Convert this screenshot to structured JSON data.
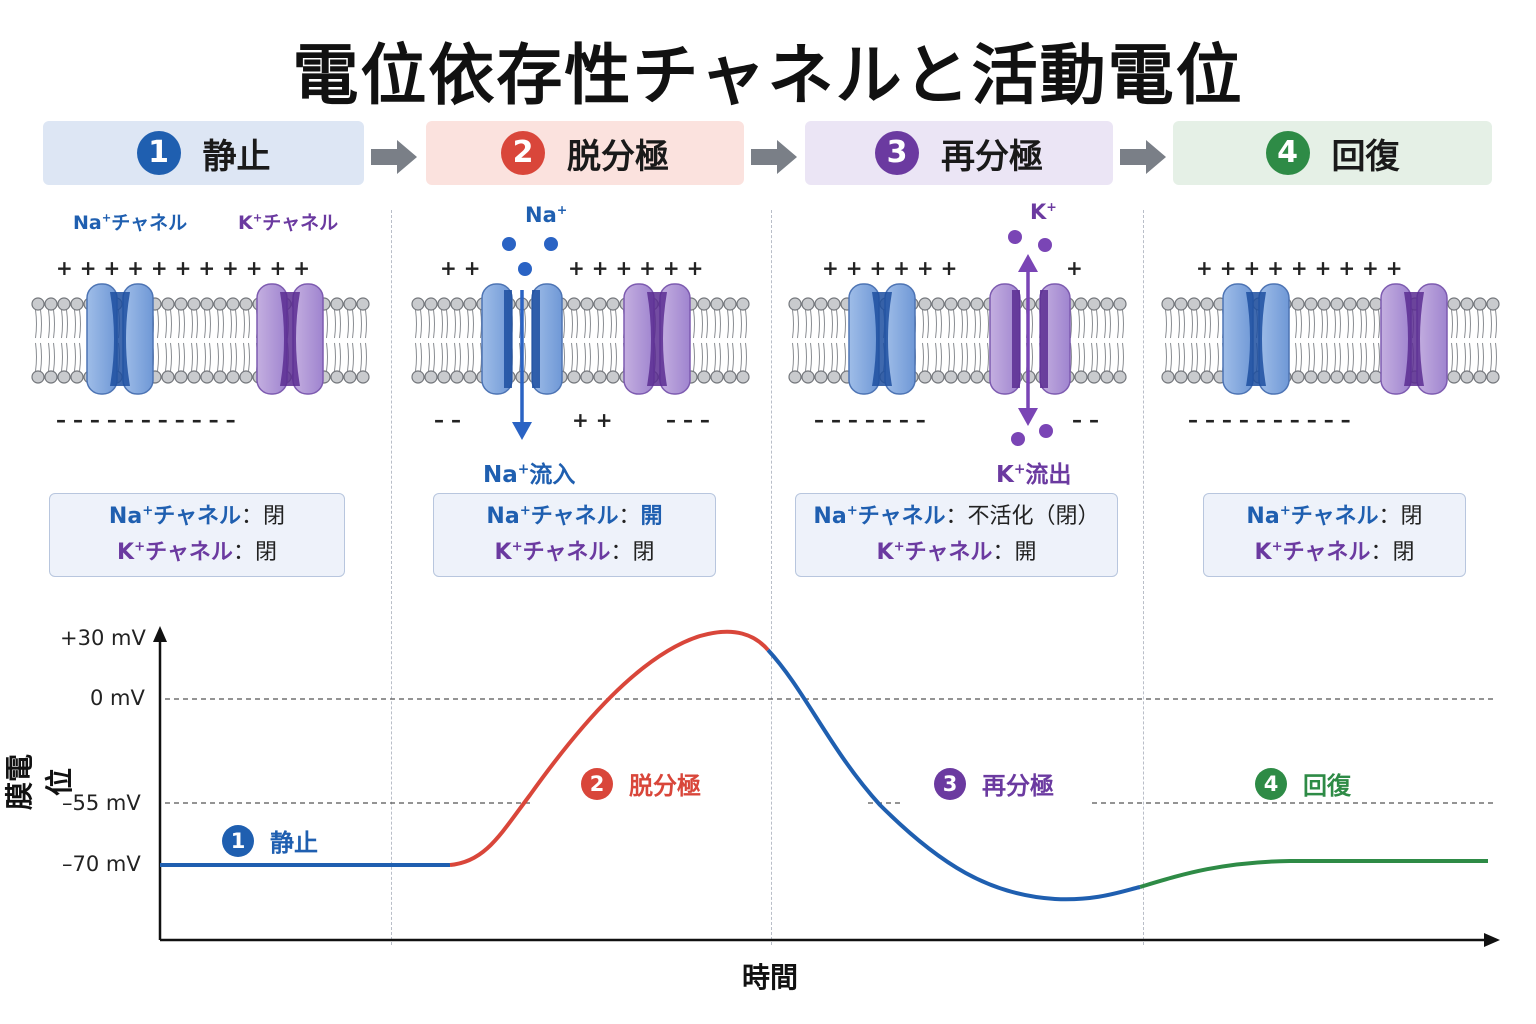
{
  "title": "電位依存性チャネルと活動電位",
  "colors": {
    "blue": "#1f5fb0",
    "red": "#d9463a",
    "purple": "#6b3aa0",
    "green": "#2e8b46",
    "bg_blue": "#dde6f4",
    "bg_red": "#fbe2de",
    "bg_purple": "#ebe5f5",
    "bg_green": "#e5f0e6"
  },
  "steps": [
    {
      "num": "1",
      "label": "静止"
    },
    {
      "num": "2",
      "label": "脱分極"
    },
    {
      "num": "3",
      "label": "再分極"
    },
    {
      "num": "4",
      "label": "回復"
    }
  ],
  "top_labels": {
    "na_channel": "Na",
    "k_channel": "K",
    "channel_suffix": "チャネル",
    "plus_sup": "+",
    "na_ion": "Na",
    "k_ion": "K",
    "na_influx": "流入",
    "k_efflux": "流出"
  },
  "charges": {
    "p1_top": "+ + + + + + + + + + +",
    "p1_bot": "– – – – – – – – – – –",
    "p2_top_l": "+ +",
    "p2_top_r": "+ + + + + +",
    "p2_bot_l": "– –",
    "p2_bot_m": "+ +",
    "p2_bot_r": "– – –",
    "p3_top": "+ + + + + +",
    "p3_top_r": "+",
    "p3_bot": "– – – – – – –",
    "p3_bot_r": "– –",
    "p4_top": "+ + + + + + + + +",
    "p4_bot": "– – – – – – – – – –"
  },
  "status": [
    {
      "na": "閉",
      "k": "閉"
    },
    {
      "na": "開",
      "k": "閉"
    },
    {
      "na": "不活化（閉）",
      "k": "開"
    },
    {
      "na": "閉",
      "k": "閉"
    }
  ],
  "status_labels": {
    "na": "Na",
    "k": "K",
    "plus": "+",
    "channel": "チャネル",
    "colon": "："
  },
  "graph": {
    "ylabel": "膜電位",
    "xlabel": "時間",
    "yticks": [
      "+30 mV",
      "0 mV",
      "–55 mV",
      "–70 mV"
    ]
  }
}
